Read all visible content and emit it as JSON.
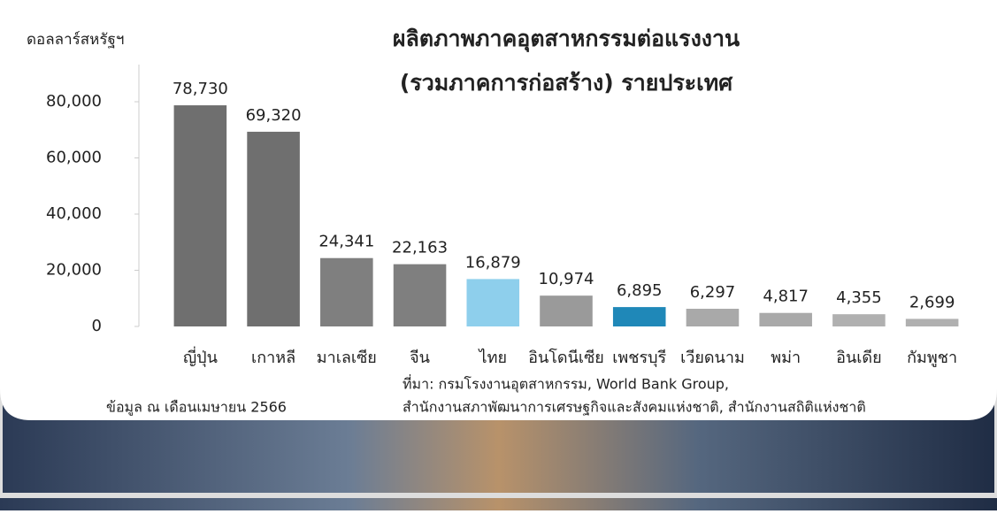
{
  "chart_data": {
    "type": "bar",
    "title": "ผลิตภาพภาคอุตสาหกรรมต่อแรงงาน",
    "subtitle": "(รวมภาคการก่อสร้าง) รายประเทศ",
    "y_label": "ดอลลาร์สหรัฐฯ",
    "categories": [
      "ญี่ปุ่น",
      "เกาหลี",
      "มาเลเซีย",
      "จีน",
      "ไทย",
      "อินโดนีเซีย",
      "เพชรบุรี",
      "เวียดนาม",
      "พม่า",
      "อินเดีย",
      "กัมพูชา"
    ],
    "values": [
      78730,
      69320,
      24341,
      22163,
      16879,
      10974,
      6895,
      6297,
      4817,
      4355,
      2699
    ],
    "value_labels": [
      "78,730",
      "69,320",
      "24,341",
      "22,163",
      "16,879",
      "10,974",
      "6,895",
      "6,297",
      "4,817",
      "4,355",
      "2,699"
    ],
    "colors": [
      "#6f6f6f",
      "#6f6f6f",
      "#7f7f7f",
      "#7f7f7f",
      "#8ecfec",
      "#9a9a9a",
      "#1f88b8",
      "#a9a9a9",
      "#a9a9a9",
      "#b0b0b0",
      "#b0b0b0"
    ],
    "ylim": [
      0,
      80000
    ],
    "yticks": [
      0,
      {
        "value": 20000,
        "label": "20,000"
      },
      {
        "value": 40000,
        "label": "40,000"
      },
      {
        "value": 60000,
        "label": "60,000"
      },
      {
        "value": 80000,
        "label": "80,000"
      }
    ],
    "note": "ข้อมูล ณ เดือนเมษายน 2566",
    "source": [
      "ที่มา: กรมโรงงานอุตสาหกรรม, World Bank Group,",
      "สำนักงานสภาพัฒนาการเศรษฐกิจและสังคมแห่งชาติ, สำนักงานสถิติแห่งชาติ"
    ]
  }
}
